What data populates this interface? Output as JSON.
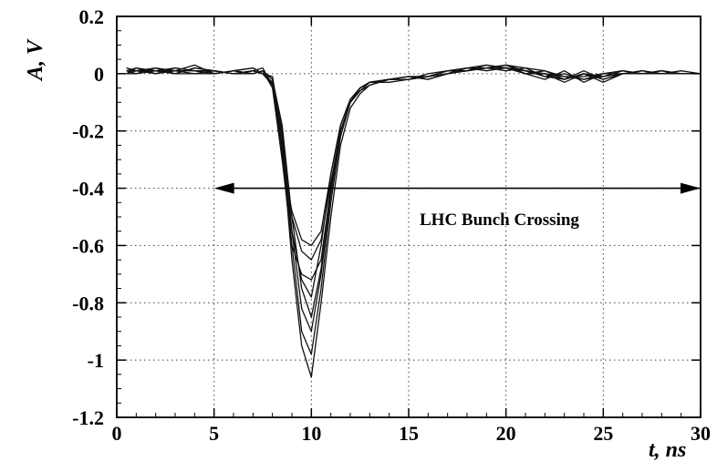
{
  "chart_data": {
    "type": "line",
    "title": "",
    "xlabel": "t, ns",
    "ylabel": "A, V",
    "xlim": [
      0,
      30
    ],
    "ylim": [
      -1.2,
      0.2
    ],
    "xticks": [
      0,
      5,
      10,
      15,
      20,
      25,
      30
    ],
    "xtick_labels": [
      "0",
      "5",
      "10",
      "15",
      "20",
      "25",
      "30"
    ],
    "yticks": [
      0.2,
      0,
      -0.2,
      -0.4,
      -0.6,
      -0.8,
      -1,
      -1.2
    ],
    "ytick_labels": [
      "0.2",
      "0",
      "-0.2",
      "-0.4",
      "-0.6",
      "-0.8",
      "-1",
      "-1.2"
    ],
    "grid": true,
    "annotation": {
      "text": "LHC Bunch Crossing",
      "arrow": {
        "y": -0.4,
        "x_from": 5,
        "x_to": 30,
        "double_headed": true
      }
    },
    "x": [
      0.5,
      1,
      2,
      3,
      4,
      5,
      6,
      7,
      7.5,
      8,
      8.5,
      9,
      9.5,
      10,
      10.5,
      11,
      11.5,
      12,
      12.5,
      13,
      14,
      15,
      16,
      17,
      18,
      19,
      20,
      21,
      22,
      23,
      24,
      25,
      26,
      27,
      28,
      29,
      30
    ],
    "series": [
      {
        "values": [
          0.02,
          0.01,
          0.01,
          0.0,
          0.02,
          0.01,
          0.0,
          0.0,
          0.01,
          -0.02,
          -0.25,
          -0.65,
          -0.95,
          -1.06,
          -0.8,
          -0.5,
          -0.25,
          -0.12,
          -0.07,
          -0.04,
          -0.02,
          -0.01,
          -0.02,
          0.0,
          0.01,
          0.02,
          0.03,
          0.02,
          0.01,
          -0.02,
          0.0,
          -0.03,
          0.0,
          0.0,
          0.01,
          0.0,
          0.0
        ]
      },
      {
        "values": [
          0.01,
          0.02,
          0.0,
          0.01,
          0.03,
          0.0,
          0.01,
          0.02,
          0.0,
          -0.01,
          -0.22,
          -0.6,
          -0.9,
          -0.98,
          -0.75,
          -0.45,
          -0.22,
          -0.1,
          -0.06,
          -0.03,
          -0.02,
          -0.02,
          -0.01,
          0.0,
          0.02,
          0.01,
          0.02,
          0.0,
          -0.02,
          0.01,
          -0.03,
          0.0,
          0.01,
          0.0,
          0.0,
          0.01,
          0.0
        ]
      },
      {
        "values": [
          0.0,
          0.01,
          0.01,
          0.0,
          0.0,
          0.01,
          0.0,
          0.01,
          0.0,
          -0.03,
          -0.2,
          -0.55,
          -0.82,
          -0.9,
          -0.7,
          -0.42,
          -0.2,
          -0.1,
          -0.05,
          -0.03,
          -0.02,
          -0.01,
          -0.01,
          0.01,
          0.02,
          0.03,
          0.02,
          0.01,
          0.0,
          -0.03,
          0.0,
          -0.02,
          0.0,
          0.01,
          0.0,
          0.0,
          0.0
        ]
      },
      {
        "values": [
          0.01,
          0.0,
          0.02,
          0.01,
          0.01,
          0.0,
          0.01,
          0.0,
          0.01,
          -0.02,
          -0.18,
          -0.5,
          -0.75,
          -0.85,
          -0.68,
          -0.4,
          -0.2,
          -0.1,
          -0.05,
          -0.03,
          -0.03,
          -0.02,
          0.0,
          0.01,
          0.01,
          0.02,
          0.03,
          0.0,
          0.01,
          -0.01,
          -0.02,
          0.0,
          0.0,
          0.0,
          0.01,
          0.0,
          0.0
        ]
      },
      {
        "values": [
          0.02,
          0.01,
          0.0,
          0.02,
          0.01,
          0.01,
          0.0,
          0.01,
          0.02,
          -0.04,
          -0.25,
          -0.55,
          -0.72,
          -0.78,
          -0.6,
          -0.35,
          -0.18,
          -0.09,
          -0.05,
          -0.03,
          -0.02,
          -0.01,
          -0.02,
          0.0,
          0.02,
          0.02,
          0.01,
          0.02,
          -0.01,
          0.0,
          -0.02,
          -0.01,
          0.01,
          0.0,
          0.0,
          0.0,
          0.0
        ]
      },
      {
        "values": [
          0.0,
          0.02,
          0.01,
          0.01,
          0.0,
          0.0,
          0.01,
          0.0,
          0.01,
          -0.05,
          -0.3,
          -0.6,
          -0.7,
          -0.72,
          -0.65,
          -0.4,
          -0.2,
          -0.1,
          -0.06,
          -0.04,
          -0.02,
          -0.02,
          -0.01,
          0.0,
          0.01,
          0.03,
          0.02,
          0.0,
          0.0,
          -0.02,
          0.01,
          -0.02,
          0.0,
          0.01,
          0.0,
          0.0,
          0.0
        ]
      },
      {
        "values": [
          0.01,
          0.01,
          0.02,
          0.0,
          0.02,
          0.01,
          0.0,
          0.01,
          0.0,
          -0.04,
          -0.28,
          -0.5,
          -0.62,
          -0.65,
          -0.58,
          -0.38,
          -0.2,
          -0.1,
          -0.05,
          -0.03,
          -0.02,
          -0.01,
          -0.01,
          0.0,
          0.02,
          0.02,
          0.02,
          0.01,
          -0.01,
          -0.02,
          0.0,
          -0.01,
          0.0,
          0.0,
          0.01,
          0.0,
          0.0
        ]
      },
      {
        "values": [
          0.0,
          0.0,
          0.01,
          0.02,
          0.01,
          0.0,
          0.01,
          0.02,
          0.0,
          -0.03,
          -0.3,
          -0.48,
          -0.58,
          -0.6,
          -0.55,
          -0.35,
          -0.18,
          -0.09,
          -0.05,
          -0.03,
          -0.02,
          -0.02,
          -0.01,
          0.01,
          0.01,
          0.02,
          0.03,
          0.01,
          0.0,
          -0.01,
          -0.01,
          0.0,
          0.01,
          0.0,
          0.0,
          0.0,
          0.0
        ]
      }
    ]
  }
}
